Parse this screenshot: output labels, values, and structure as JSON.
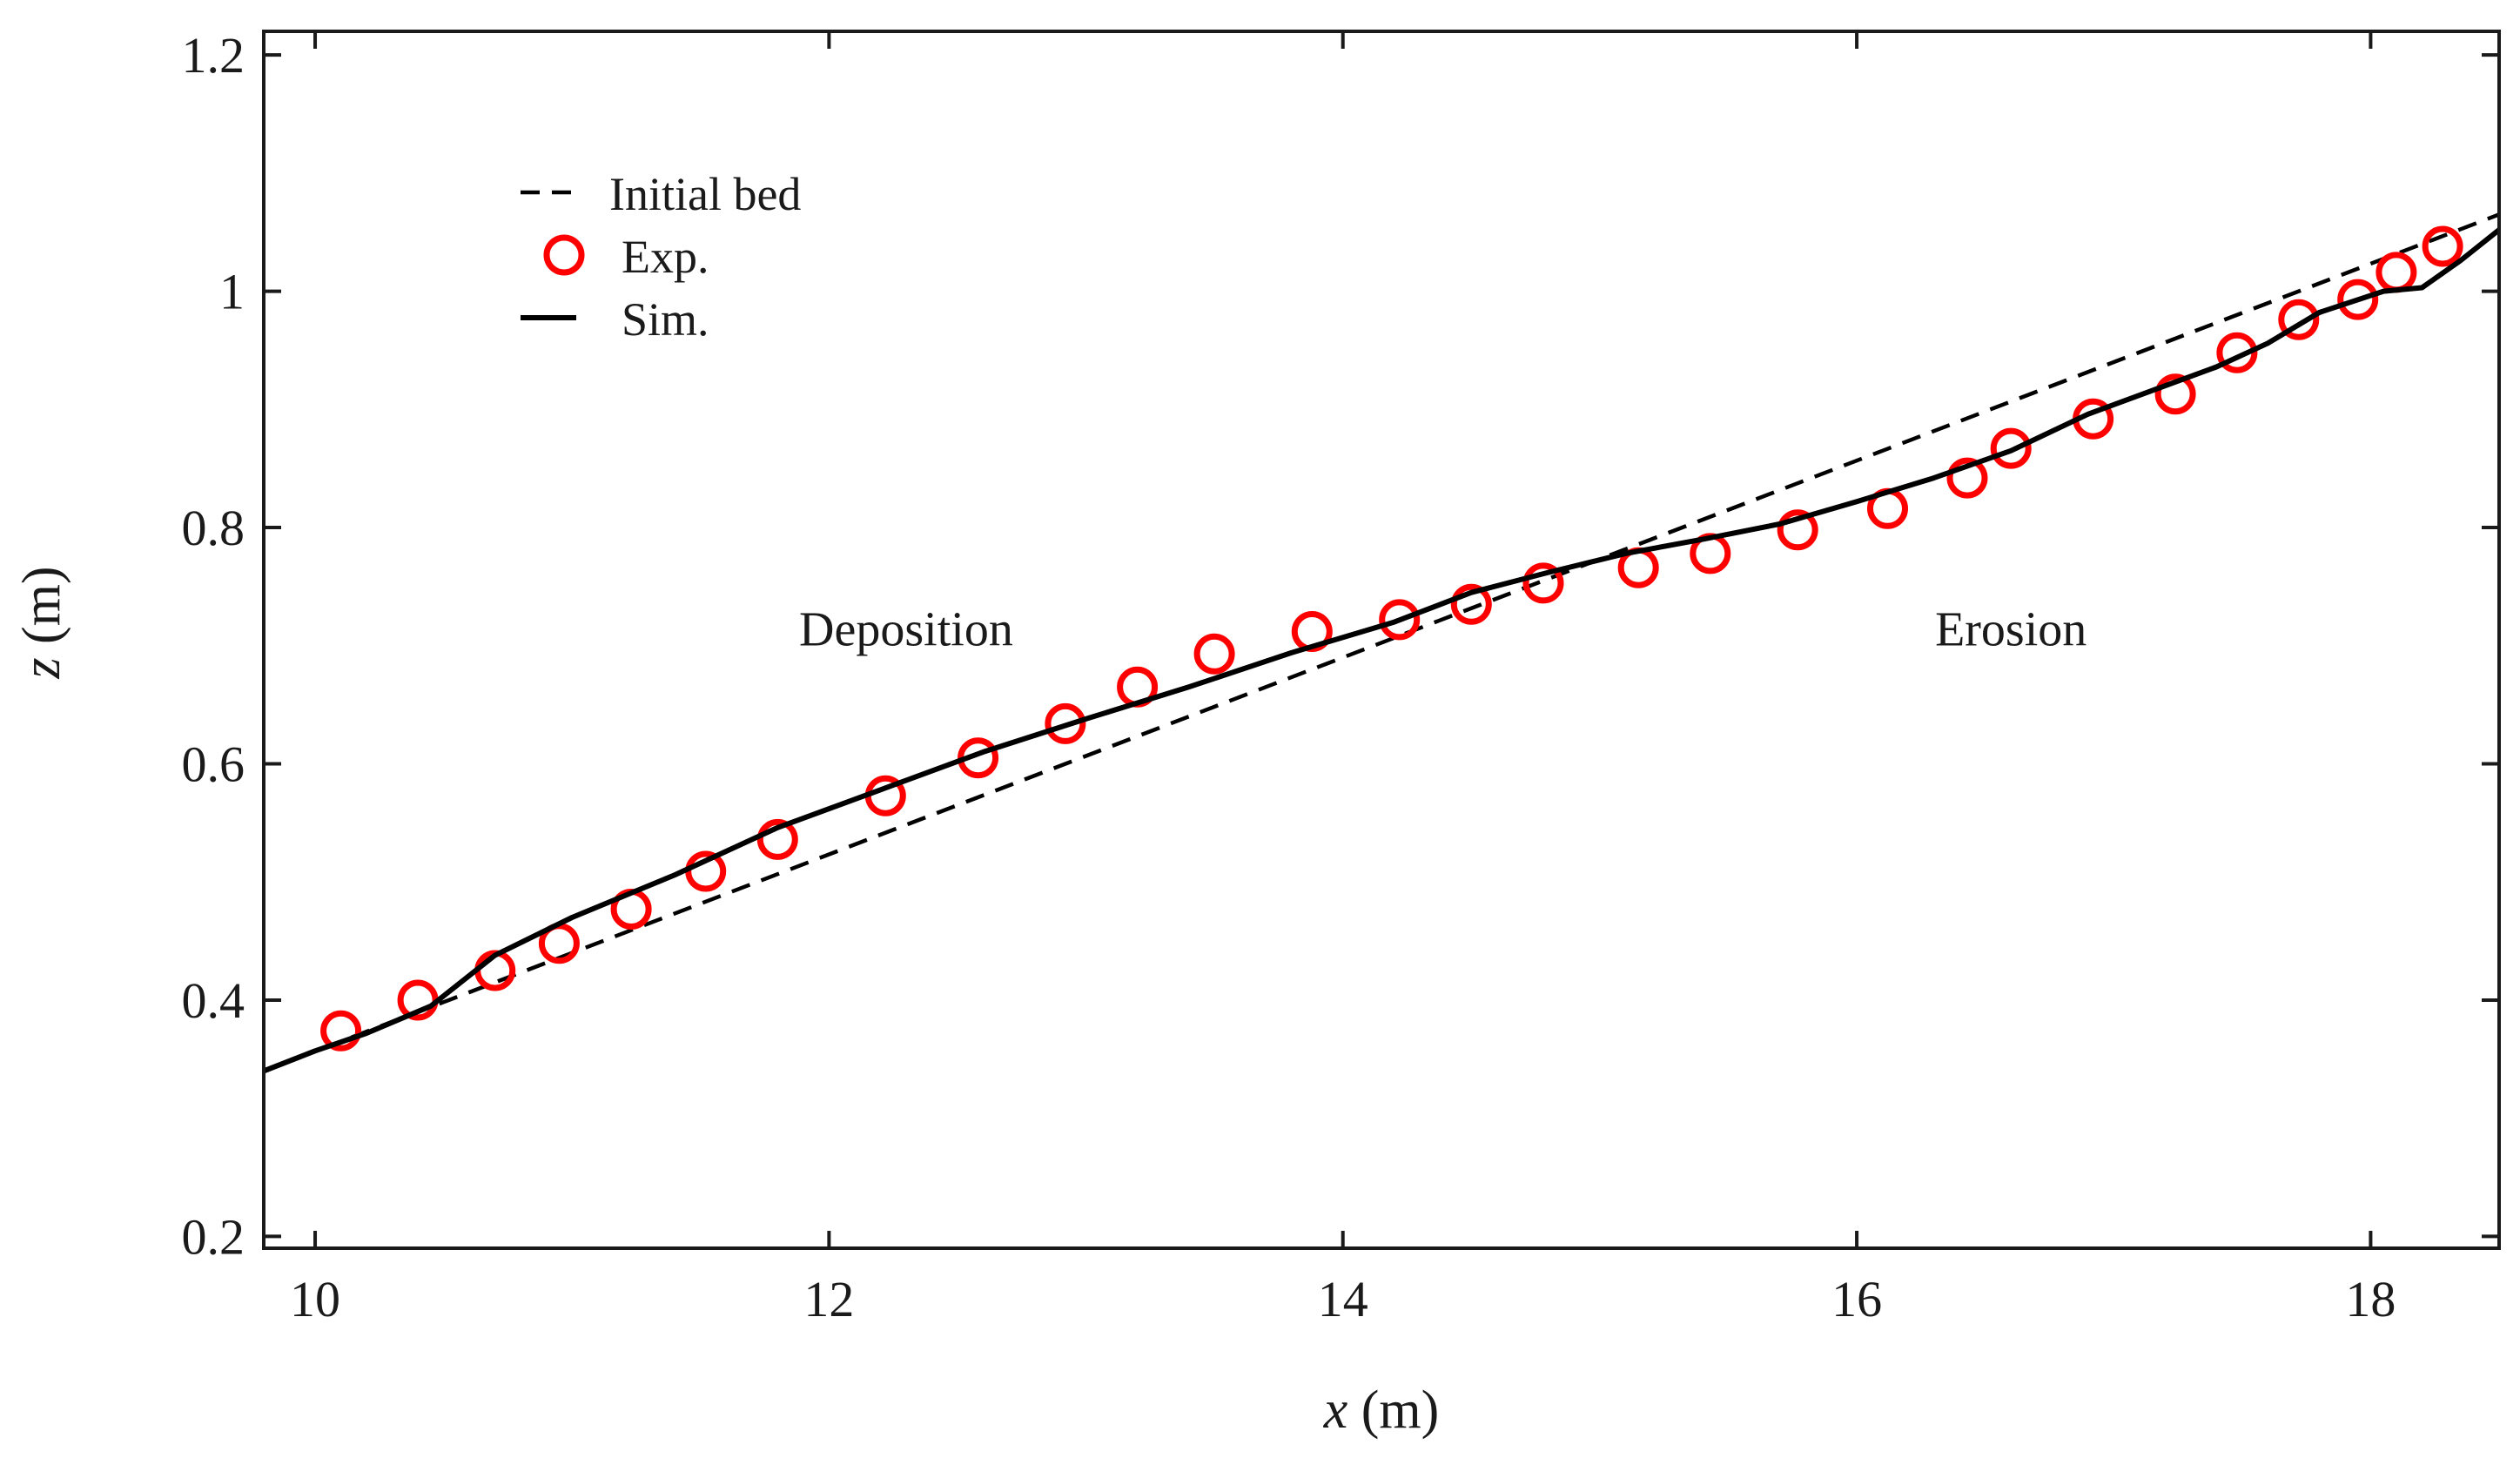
{
  "chart_data": {
    "type": "line",
    "title": "",
    "xlabel": {
      "var": "x",
      "unit": " (m)"
    },
    "ylabel": {
      "var": "z",
      "unit": " (m)"
    },
    "xlim": [
      9.8,
      18.5
    ],
    "ylim": [
      0.19,
      1.22
    ],
    "xticks": [
      10,
      12,
      14,
      16,
      18
    ],
    "xtick_labels": [
      "10",
      "12",
      "14",
      "16",
      "18"
    ],
    "yticks": [
      0.2,
      0.4,
      0.6,
      0.8,
      1.0,
      1.2
    ],
    "ytick_labels": [
      "0.2",
      "0.4",
      "0.6",
      "0.8",
      "1",
      "1.2"
    ],
    "grid": false,
    "legend_position": "top-left",
    "series": [
      {
        "name": "Initial bed",
        "style": "dashed",
        "color": "#000000",
        "x": [
          9.8,
          18.5
        ],
        "y": [
          0.34,
          1.065
        ]
      },
      {
        "name": "Exp.",
        "style": "markers",
        "marker": "circle",
        "color": "#ff0000",
        "x": [
          10.1,
          10.4,
          10.7,
          10.95,
          11.23,
          11.52,
          11.8,
          12.22,
          12.58,
          12.92,
          13.2,
          13.5,
          13.88,
          14.22,
          14.5,
          14.78,
          15.15,
          15.43,
          15.77,
          16.12,
          16.43,
          16.6,
          16.92,
          17.24,
          17.48,
          17.72,
          17.95,
          18.1,
          18.28
        ],
        "y": [
          0.374,
          0.4,
          0.425,
          0.448,
          0.477,
          0.509,
          0.536,
          0.573,
          0.605,
          0.634,
          0.665,
          0.693,
          0.712,
          0.722,
          0.735,
          0.753,
          0.766,
          0.778,
          0.798,
          0.816,
          0.842,
          0.867,
          0.892,
          0.913,
          0.948,
          0.976,
          0.993,
          1.016,
          1.038
        ]
      },
      {
        "name": "Sim.",
        "style": "solid",
        "color": "#000000",
        "x": [
          9.8,
          10.0,
          10.2,
          10.45,
          10.7,
          11.0,
          11.4,
          11.8,
          12.2,
          12.6,
          13.0,
          13.4,
          13.8,
          14.2,
          14.5,
          14.8,
          15.1,
          15.4,
          15.7,
          16.0,
          16.3,
          16.6,
          16.9,
          17.2,
          17.4,
          17.6,
          17.8,
          18.05,
          18.2,
          18.35,
          18.5
        ],
        "y": [
          0.34,
          0.357,
          0.372,
          0.395,
          0.438,
          0.47,
          0.506,
          0.546,
          0.578,
          0.61,
          0.638,
          0.665,
          0.694,
          0.72,
          0.745,
          0.762,
          0.778,
          0.79,
          0.803,
          0.822,
          0.842,
          0.865,
          0.896,
          0.92,
          0.936,
          0.956,
          0.982,
          1.0,
          1.003,
          1.026,
          1.052
        ]
      }
    ],
    "annotations": [
      {
        "text": "Deposition",
        "x": 12.3,
        "y": 0.715
      },
      {
        "text": "Erosion",
        "x": 16.6,
        "y": 0.715
      }
    ]
  }
}
